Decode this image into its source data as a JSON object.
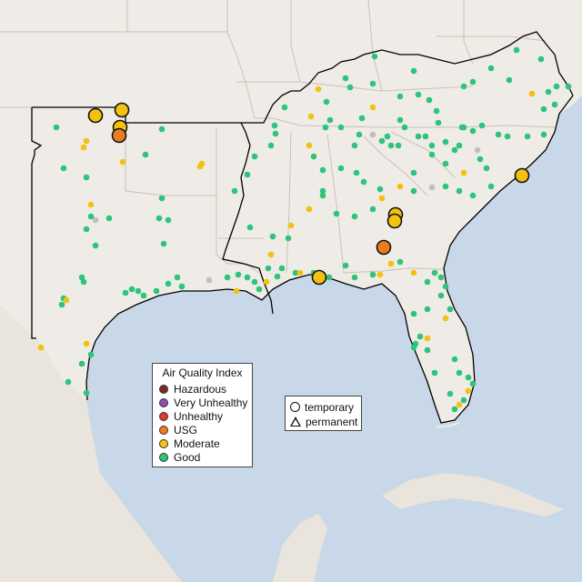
{
  "colors": {
    "water": "#c8d8e8",
    "land": "#efebe6",
    "state_line": "#c9c2bb",
    "region_outline": "#000000"
  },
  "legend": {
    "title": "Air Quality Index",
    "items": [
      {
        "label": "Hazardous",
        "color": "#7e2a22"
      },
      {
        "label": "Very Unhealthy",
        "color": "#8f4fb0"
      },
      {
        "label": "Unhealthy",
        "color": "#e2392c"
      },
      {
        "label": "USG",
        "color": "#ea7e1f"
      },
      {
        "label": "Moderate",
        "color": "#f3c20f"
      },
      {
        "label": "Good",
        "color": "#2ec47a"
      }
    ]
  },
  "shape_legend": {
    "items": [
      {
        "label": "temporary",
        "icon": "circle-icon"
      },
      {
        "label": "permanent",
        "icon": "triangle-icon"
      }
    ]
  }
}
